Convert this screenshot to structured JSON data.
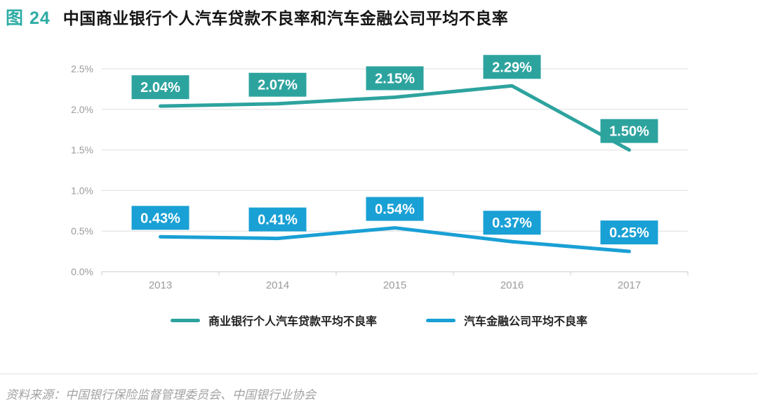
{
  "header": {
    "figure_label": "图 24",
    "title": "中国商业银行个人汽车贷款不良率和汽车金融公司平均不良率"
  },
  "chart_data": {
    "type": "line",
    "title": "中国商业银行个人汽车贷款不良率和汽车金融公司平均不良率",
    "categories": [
      "2013",
      "2014",
      "2015",
      "2016",
      "2017"
    ],
    "series": [
      {
        "name": "商业银行个人汽车贷款平均不良率",
        "values": [
          2.04,
          2.07,
          2.15,
          2.29,
          1.5
        ],
        "labels": [
          "2.04%",
          "2.07%",
          "2.15%",
          "2.29%",
          "1.50%"
        ],
        "color": "#2da39e"
      },
      {
        "name": "汽车金融公司平均不良率",
        "values": [
          0.43,
          0.41,
          0.54,
          0.37,
          0.25
        ],
        "labels": [
          "0.43%",
          "0.41%",
          "0.54%",
          "0.37%",
          "0.25%"
        ],
        "color": "#19a0d5"
      }
    ],
    "xlabel": "",
    "ylabel": "",
    "ylim": [
      0,
      2.5
    ],
    "yticks": [
      0,
      0.5,
      1,
      1.5,
      2,
      2.5
    ],
    "ytick_labels": [
      "0.0%",
      "0.5%",
      "1.0%",
      "1.5%",
      "2.0%",
      "2.5%"
    ],
    "grid": true,
    "legend_position": "bottom"
  },
  "footer": {
    "source": "资料来源：中国银行保险监督管理委员会、中国银行业协会"
  },
  "colors": {
    "figure_label_accent": "#2fada6",
    "series_bank": "#2da39e",
    "series_auto_finance": "#19a0d5",
    "gridline": "#dedede",
    "axis_line": "#c9c9c9",
    "axis_text": "#9b9b9b",
    "data_label_text": "#ffffff"
  }
}
